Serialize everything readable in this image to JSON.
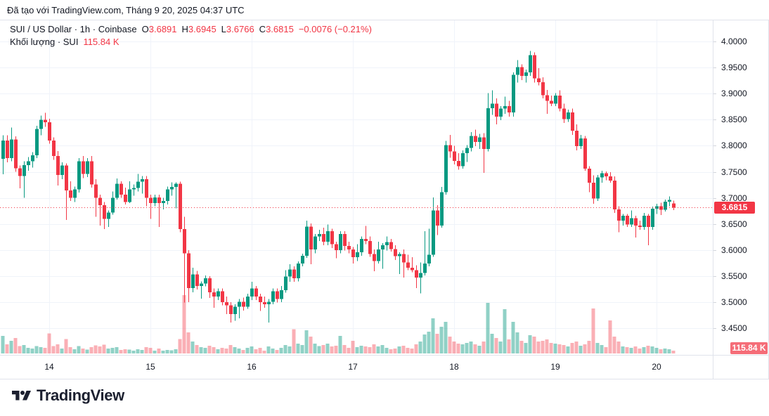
{
  "header": {
    "attribution": "Đã tạo với TradingView.com, Tháng 9 20, 2025 04:37 UTC"
  },
  "legend": {
    "row1": {
      "title": "SUI / US Dollar · 1h · Coinbase",
      "open_label": "O",
      "open": "3.6891",
      "high_label": "H",
      "high": "3.6945",
      "low_label": "L",
      "low": "3.6766",
      "close_label": "C",
      "close": "3.6815",
      "change": "−0.0076 (−0.21%)"
    },
    "row2": {
      "title": "Khối lượng · SUI",
      "value": "115.84 K"
    }
  },
  "price_scale": {
    "badge": "3.6815",
    "volume_badge": "115.84 K"
  },
  "logo": {
    "text": "TradingView",
    "icon": "tradingview-mark"
  },
  "colors": {
    "up": "#089981",
    "down": "#f23645",
    "vol_up": "rgba(8,153,129,0.45)",
    "vol_down": "rgba(242,54,69,0.40)",
    "badge_price": "#f23645",
    "badge_volume": "#f56d78",
    "grid": "#f0f3fa",
    "frame": "#e0e3eb",
    "tick": "#d1d4dc",
    "axis_text": "#131722",
    "text": "#131722"
  },
  "chart_data": {
    "type": "candlestick",
    "title": "SUI / US Dollar",
    "interval": "1h",
    "exchange": "Coinbase",
    "last_price": 3.6815,
    "last_volume_label": "115.84 K",
    "grid": true,
    "y_axis": {
      "side": "right",
      "min": 3.42,
      "max": 4.01,
      "ticks": [
        {
          "label": "4.0000",
          "value": 4.0
        },
        {
          "label": "3.9500",
          "value": 3.95
        },
        {
          "label": "3.9000",
          "value": 3.9
        },
        {
          "label": "3.8500",
          "value": 3.85
        },
        {
          "label": "3.8000",
          "value": 3.8
        },
        {
          "label": "3.7500",
          "value": 3.75
        },
        {
          "label": "3.7000",
          "value": 3.7
        },
        {
          "label": "3.6500",
          "value": 3.65
        },
        {
          "label": "3.6000",
          "value": 3.6
        },
        {
          "label": "3.5500",
          "value": 3.55
        },
        {
          "label": "3.5000",
          "value": 3.5
        },
        {
          "label": "3.4500",
          "value": 3.45
        }
      ]
    },
    "x_axis": {
      "ticks": [
        {
          "label": "14",
          "candle_index": 11
        },
        {
          "label": "15",
          "candle_index": 35
        },
        {
          "label": "16",
          "candle_index": 59
        },
        {
          "label": "17",
          "candle_index": 83
        },
        {
          "label": "18",
          "candle_index": 107
        },
        {
          "label": "19",
          "candle_index": 131
        },
        {
          "label": "20",
          "candle_index": 155
        }
      ]
    },
    "volume_unit": "K (estimated from bar heights; last bar exact)",
    "candles_format": [
      "open",
      "high",
      "low",
      "close",
      "volume"
    ],
    "candles": [
      [
        3.775,
        3.82,
        3.745,
        3.81,
        720
      ],
      [
        3.81,
        3.82,
        3.768,
        3.776,
        380
      ],
      [
        3.776,
        3.835,
        3.77,
        3.812,
        520
      ],
      [
        3.812,
        3.818,
        3.75,
        3.757,
        640
      ],
      [
        3.757,
        3.762,
        3.718,
        3.742,
        300
      ],
      [
        3.742,
        3.77,
        3.7,
        3.763,
        350
      ],
      [
        3.763,
        3.778,
        3.752,
        3.77,
        230
      ],
      [
        3.77,
        3.788,
        3.758,
        3.782,
        200
      ],
      [
        3.782,
        3.838,
        3.776,
        3.832,
        300
      ],
      [
        3.832,
        3.858,
        3.82,
        3.85,
        260
      ],
      [
        3.85,
        3.863,
        3.836,
        3.845,
        230
      ],
      [
        3.845,
        3.852,
        3.804,
        3.81,
        820
      ],
      [
        3.81,
        3.816,
        3.773,
        3.78,
        300
      ],
      [
        3.78,
        3.79,
        3.724,
        3.744,
        380
      ],
      [
        3.744,
        3.768,
        3.736,
        3.762,
        200
      ],
      [
        3.762,
        3.766,
        3.658,
        3.714,
        600
      ],
      [
        3.714,
        3.732,
        3.694,
        3.7,
        260
      ],
      [
        3.7,
        3.722,
        3.692,
        3.716,
        170
      ],
      [
        3.716,
        3.776,
        3.71,
        3.77,
        300
      ],
      [
        3.77,
        3.78,
        3.738,
        3.746,
        200
      ],
      [
        3.746,
        3.776,
        3.74,
        3.77,
        160
      ],
      [
        3.77,
        3.78,
        3.72,
        3.726,
        260
      ],
      [
        3.726,
        3.736,
        3.664,
        3.7,
        330
      ],
      [
        3.7,
        3.706,
        3.647,
        3.686,
        290
      ],
      [
        3.686,
        3.692,
        3.64,
        3.66,
        360
      ],
      [
        3.66,
        3.676,
        3.644,
        3.672,
        200
      ],
      [
        3.672,
        3.712,
        3.668,
        3.7,
        230
      ],
      [
        3.7,
        3.737,
        3.697,
        3.727,
        260
      ],
      [
        3.727,
        3.732,
        3.7,
        3.706,
        150
      ],
      [
        3.706,
        3.72,
        3.687,
        3.692,
        170
      ],
      [
        3.692,
        3.732,
        3.69,
        3.716,
        160
      ],
      [
        3.716,
        3.726,
        3.704,
        3.719,
        120
      ],
      [
        3.719,
        3.746,
        3.712,
        3.731,
        170
      ],
      [
        3.731,
        3.742,
        3.708,
        3.736,
        150
      ],
      [
        3.736,
        3.742,
        3.684,
        3.7,
        260
      ],
      [
        3.7,
        3.706,
        3.66,
        3.69,
        230
      ],
      [
        3.69,
        3.706,
        3.684,
        3.701,
        120
      ],
      [
        3.701,
        3.706,
        3.644,
        3.69,
        200
      ],
      [
        3.69,
        3.7,
        3.678,
        3.694,
        110
      ],
      [
        3.694,
        3.722,
        3.687,
        3.716,
        150
      ],
      [
        3.716,
        3.73,
        3.704,
        3.721,
        130
      ],
      [
        3.721,
        3.73,
        3.68,
        3.727,
        180
      ],
      [
        3.727,
        3.731,
        3.634,
        3.64,
        590
      ],
      [
        3.64,
        3.664,
        3.499,
        3.594,
        2407
      ],
      [
        3.594,
        3.6,
        3.5,
        3.527,
        870
      ],
      [
        3.527,
        3.566,
        3.519,
        3.553,
        500
      ],
      [
        3.553,
        3.56,
        3.524,
        3.531,
        350
      ],
      [
        3.531,
        3.54,
        3.507,
        3.536,
        260
      ],
      [
        3.536,
        3.551,
        3.53,
        3.546,
        230
      ],
      [
        3.546,
        3.55,
        3.508,
        3.519,
        320
      ],
      [
        3.519,
        3.526,
        3.489,
        3.511,
        260
      ],
      [
        3.511,
        3.526,
        3.504,
        3.521,
        170
      ],
      [
        3.521,
        3.526,
        3.494,
        3.5,
        230
      ],
      [
        3.5,
        3.511,
        3.477,
        3.494,
        200
      ],
      [
        3.494,
        3.5,
        3.461,
        3.477,
        350
      ],
      [
        3.477,
        3.496,
        3.464,
        3.491,
        260
      ],
      [
        3.491,
        3.506,
        3.469,
        3.501,
        200
      ],
      [
        3.501,
        3.509,
        3.484,
        3.491,
        150
      ],
      [
        3.491,
        3.516,
        3.487,
        3.511,
        230
      ],
      [
        3.511,
        3.539,
        3.504,
        3.526,
        290
      ],
      [
        3.526,
        3.531,
        3.504,
        3.511,
        170
      ],
      [
        3.511,
        3.516,
        3.483,
        3.5,
        230
      ],
      [
        3.5,
        3.511,
        3.489,
        3.496,
        120
      ],
      [
        3.496,
        3.506,
        3.461,
        3.501,
        290
      ],
      [
        3.501,
        3.526,
        3.496,
        3.521,
        200
      ],
      [
        3.521,
        3.526,
        3.499,
        3.506,
        150
      ],
      [
        3.506,
        3.531,
        3.5,
        3.523,
        230
      ],
      [
        3.523,
        3.561,
        3.518,
        3.549,
        350
      ],
      [
        3.549,
        3.573,
        3.539,
        3.563,
        290
      ],
      [
        3.563,
        3.569,
        3.539,
        3.546,
        1000
      ],
      [
        3.546,
        3.578,
        3.54,
        3.574,
        400
      ],
      [
        3.574,
        3.593,
        3.569,
        3.589,
        350
      ],
      [
        3.589,
        3.656,
        3.585,
        3.645,
        960
      ],
      [
        3.645,
        3.651,
        3.573,
        3.601,
        700
      ],
      [
        3.601,
        3.631,
        3.594,
        3.626,
        400
      ],
      [
        3.626,
        3.639,
        3.617,
        3.631,
        300
      ],
      [
        3.631,
        3.643,
        3.609,
        3.616,
        350
      ],
      [
        3.616,
        3.649,
        3.609,
        3.636,
        400
      ],
      [
        3.636,
        3.641,
        3.604,
        3.611,
        290
      ],
      [
        3.611,
        3.616,
        3.584,
        3.6,
        320
      ],
      [
        3.6,
        3.636,
        3.594,
        3.631,
        730
      ],
      [
        3.631,
        3.636,
        3.599,
        3.608,
        350
      ],
      [
        3.608,
        3.616,
        3.594,
        3.601,
        230
      ],
      [
        3.601,
        3.606,
        3.574,
        3.586,
        520
      ],
      [
        3.586,
        3.611,
        3.579,
        3.596,
        260
      ],
      [
        3.596,
        3.626,
        3.589,
        3.621,
        320
      ],
      [
        3.621,
        3.646,
        3.611,
        3.617,
        290
      ],
      [
        3.617,
        3.626,
        3.587,
        3.592,
        260
      ],
      [
        3.592,
        3.601,
        3.559,
        3.579,
        380
      ],
      [
        3.579,
        3.616,
        3.574,
        3.601,
        290
      ],
      [
        3.601,
        3.613,
        3.564,
        3.609,
        350
      ],
      [
        3.609,
        3.626,
        3.599,
        3.615,
        230
      ],
      [
        3.615,
        3.621,
        3.597,
        3.602,
        170
      ],
      [
        3.602,
        3.609,
        3.581,
        3.588,
        200
      ],
      [
        3.588,
        3.596,
        3.554,
        3.592,
        290
      ],
      [
        3.592,
        3.601,
        3.547,
        3.576,
        320
      ],
      [
        3.576,
        3.591,
        3.561,
        3.566,
        230
      ],
      [
        3.566,
        3.586,
        3.557,
        3.561,
        200
      ],
      [
        3.561,
        3.571,
        3.527,
        3.547,
        380
      ],
      [
        3.547,
        3.576,
        3.517,
        3.556,
        490
      ],
      [
        3.556,
        3.636,
        3.551,
        3.574,
        780
      ],
      [
        3.574,
        3.641,
        3.569,
        3.591,
        900
      ],
      [
        3.591,
        3.701,
        3.587,
        3.676,
        1450
      ],
      [
        3.676,
        3.686,
        3.629,
        3.647,
        810
      ],
      [
        3.647,
        3.721,
        3.643,
        3.711,
        1100
      ],
      [
        3.711,
        3.809,
        3.706,
        3.801,
        1300
      ],
      [
        3.801,
        3.821,
        3.777,
        3.789,
        700
      ],
      [
        3.789,
        3.8,
        3.764,
        3.771,
        490
      ],
      [
        3.771,
        3.786,
        3.754,
        3.761,
        410
      ],
      [
        3.761,
        3.791,
        3.756,
        3.786,
        380
      ],
      [
        3.786,
        3.801,
        3.769,
        3.796,
        440
      ],
      [
        3.796,
        3.826,
        3.789,
        3.819,
        500
      ],
      [
        3.819,
        3.831,
        3.799,
        3.807,
        380
      ],
      [
        3.807,
        3.823,
        3.794,
        3.816,
        320
      ],
      [
        3.816,
        3.824,
        3.748,
        3.794,
        500
      ],
      [
        3.794,
        3.901,
        3.789,
        3.872,
        2090
      ],
      [
        3.872,
        3.906,
        3.859,
        3.881,
        810
      ],
      [
        3.881,
        3.891,
        3.841,
        3.856,
        640
      ],
      [
        3.856,
        3.876,
        3.849,
        3.871,
        490
      ],
      [
        3.871,
        3.894,
        3.861,
        3.876,
        1830
      ],
      [
        3.876,
        3.886,
        3.856,
        3.864,
        580
      ],
      [
        3.864,
        3.941,
        3.856,
        3.936,
        1310
      ],
      [
        3.936,
        3.964,
        3.921,
        3.951,
        870
      ],
      [
        3.951,
        3.956,
        3.926,
        3.934,
        520
      ],
      [
        3.934,
        3.946,
        3.921,
        3.941,
        440
      ],
      [
        3.941,
        3.982,
        3.934,
        3.974,
        760
      ],
      [
        3.974,
        3.979,
        3.921,
        3.929,
        700
      ],
      [
        3.929,
        3.949,
        3.916,
        3.922,
        490
      ],
      [
        3.922,
        3.931,
        3.891,
        3.897,
        520
      ],
      [
        3.897,
        3.907,
        3.861,
        3.886,
        580
      ],
      [
        3.886,
        3.896,
        3.876,
        3.881,
        440
      ],
      [
        3.881,
        3.901,
        3.876,
        3.896,
        410
      ],
      [
        3.896,
        3.906,
        3.866,
        3.871,
        380
      ],
      [
        3.871,
        3.881,
        3.844,
        3.851,
        350
      ],
      [
        3.851,
        3.869,
        3.846,
        3.864,
        290
      ],
      [
        3.864,
        3.871,
        3.821,
        3.829,
        440
      ],
      [
        3.829,
        3.841,
        3.791,
        3.799,
        490
      ],
      [
        3.799,
        3.821,
        3.794,
        3.814,
        320
      ],
      [
        3.814,
        3.819,
        3.752,
        3.756,
        380
      ],
      [
        3.756,
        3.761,
        3.711,
        3.729,
        520
      ],
      [
        3.729,
        3.743,
        3.689,
        3.699,
        1860
      ],
      [
        3.699,
        3.744,
        3.694,
        3.739,
        440
      ],
      [
        3.739,
        3.752,
        3.729,
        3.747,
        350
      ],
      [
        3.747,
        3.751,
        3.734,
        3.741,
        260
      ],
      [
        3.741,
        3.749,
        3.729,
        3.733,
        1360
      ],
      [
        3.733,
        3.741,
        3.671,
        3.678,
        700
      ],
      [
        3.678,
        3.684,
        3.634,
        3.656,
        490
      ],
      [
        3.656,
        3.669,
        3.647,
        3.666,
        290
      ],
      [
        3.666,
        3.669,
        3.644,
        3.649,
        260
      ],
      [
        3.649,
        3.676,
        3.644,
        3.661,
        230
      ],
      [
        3.661,
        3.666,
        3.624,
        3.647,
        290
      ],
      [
        3.647,
        3.656,
        3.639,
        3.644,
        200
      ],
      [
        3.644,
        3.671,
        3.639,
        3.666,
        260
      ],
      [
        3.666,
        3.669,
        3.609,
        3.644,
        320
      ],
      [
        3.644,
        3.683,
        3.639,
        3.679,
        290
      ],
      [
        3.679,
        3.689,
        3.669,
        3.684,
        230
      ],
      [
        3.684,
        3.691,
        3.667,
        3.677,
        170
      ],
      [
        3.677,
        3.697,
        3.674,
        3.693,
        200
      ],
      [
        3.693,
        3.703,
        3.684,
        3.696,
        170
      ],
      [
        3.6891,
        3.6945,
        3.6766,
        3.6815,
        115.84
      ]
    ]
  }
}
